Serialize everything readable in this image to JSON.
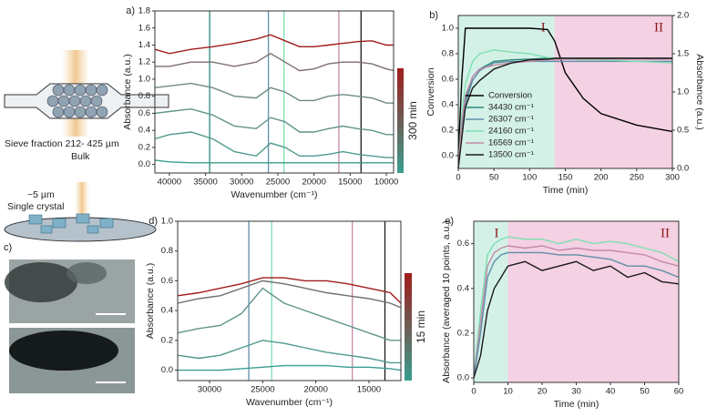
{
  "schematic": {
    "labels": [
      "Sieve fraction 212- 425 µm",
      "Bulk",
      "~5 µm",
      "Single crystal"
    ],
    "panel": "c)"
  },
  "chart_data": [
    {
      "type": "line",
      "panel": "a)",
      "xlabel": "Wavenumber (cm⁻¹)",
      "ylabel": "Absorbance (a.u.)",
      "x": [
        42000,
        40000,
        37000,
        34000,
        31000,
        28000,
        26000,
        24000,
        22000,
        20000,
        18000,
        16000,
        14000,
        12000,
        10000,
        9000
      ],
      "xlim": [
        42000,
        9000
      ],
      "xticks": [
        40000,
        35000,
        30000,
        25000,
        20000,
        15000,
        10000
      ],
      "ylim": [
        -0.1,
        1.8
      ],
      "yticks": [
        {
          "value": 0,
          "label": "0.0"
        },
        0.2,
        0.4,
        0.6,
        0.8,
        {
          "value": 1,
          "label": "1.0"
        },
        1.2,
        1.4,
        1.6,
        1.8
      ],
      "series": [
        {
          "color": "#3a9e8f",
          "values": [
            0.05,
            0.03,
            0.02,
            0.02,
            0.02,
            0.02,
            0.02,
            0.02,
            0.02,
            0.02,
            0.02,
            0.02,
            0.02,
            0.02,
            0.02,
            0.02
          ]
        },
        {
          "color": "#4f9a8e",
          "values": [
            0.3,
            0.35,
            0.38,
            0.3,
            0.15,
            0.1,
            0.25,
            0.2,
            0.1,
            0.1,
            0.12,
            0.15,
            0.12,
            0.1,
            0.08,
            0.08
          ]
        },
        {
          "color": "#5f948c",
          "values": [
            0.6,
            0.62,
            0.65,
            0.58,
            0.45,
            0.42,
            0.55,
            0.5,
            0.38,
            0.38,
            0.42,
            0.45,
            0.42,
            0.4,
            0.35,
            0.35
          ]
        },
        {
          "color": "#6f8a86",
          "values": [
            0.9,
            0.92,
            0.95,
            0.9,
            0.8,
            0.78,
            0.9,
            0.85,
            0.75,
            0.75,
            0.8,
            0.82,
            0.8,
            0.78,
            0.72,
            0.72
          ]
        },
        {
          "color": "#7d6f6f",
          "values": [
            1.15,
            1.15,
            1.2,
            1.2,
            1.15,
            1.2,
            1.3,
            1.2,
            1.1,
            1.12,
            1.18,
            1.2,
            1.2,
            1.18,
            1.12,
            1.1
          ]
        },
        {
          "color": "#a01c1c",
          "values": [
            1.35,
            1.3,
            1.35,
            1.38,
            1.42,
            1.47,
            1.52,
            1.45,
            1.38,
            1.38,
            1.4,
            1.42,
            1.44,
            1.45,
            1.4,
            1.4
          ]
        }
      ],
      "vlines": [
        {
          "value": 34430,
          "color": "#2a8a78"
        },
        {
          "value": 26307,
          "color": "#5f8fa8"
        },
        {
          "value": 24160,
          "color": "#7de0b0"
        },
        {
          "value": 16569,
          "color": "#c48aa8"
        },
        {
          "value": 13500,
          "color": "#1a1a1a"
        }
      ],
      "colorbar": {
        "label": "300 min",
        "colors": [
          "#3a9e8f",
          "#a01c1c"
        ]
      }
    },
    {
      "type": "line",
      "panel": "b)",
      "xlabel": "Time (min)",
      "ylabel": "Conversion",
      "y2label": "Absorbance (a.u.)",
      "x": [
        0,
        5,
        10,
        20,
        30,
        50,
        75,
        100,
        125,
        135,
        150,
        175,
        200,
        250,
        300
      ],
      "xlim": [
        0,
        300
      ],
      "xticks": [
        0,
        50,
        100,
        150,
        200,
        250,
        300
      ],
      "ylim": [
        -0.1,
        1.1
      ],
      "yticks": [
        {
          "value": 0,
          "label": "0.0"
        },
        0.2,
        0.4,
        0.6,
        0.8,
        {
          "value": 1,
          "label": "1.0"
        }
      ],
      "y2lim": [
        0,
        2
      ],
      "y2ticks": [
        {
          "value": 0,
          "label": "0.0"
        },
        0.5,
        {
          "value": 1,
          "label": "1.0"
        },
        1.5,
        {
          "value": 2,
          "label": "2.0"
        }
      ],
      "legend": "lower left",
      "regions": [
        {
          "start": 0,
          "end": 135,
          "color": "#cdeee4",
          "label": "I"
        },
        {
          "start": 135,
          "end": 300,
          "color": "#f2c9de",
          "label": "II"
        }
      ],
      "series": [
        {
          "name": "Conversion",
          "color": "#000000",
          "values": [
            0,
            0.6,
            1.0,
            1.0,
            1.0,
            1.0,
            1.0,
            1.0,
            0.99,
            0.9,
            0.65,
            0.45,
            0.33,
            0.24,
            0.19
          ]
        },
        {
          "name": "34430 cm⁻¹",
          "color": "#2a8a78",
          "axis": "y2",
          "values": [
            0,
            0.55,
            0.9,
            1.2,
            1.3,
            1.4,
            1.42,
            1.43,
            1.44,
            1.44,
            1.44,
            1.44,
            1.44,
            1.44,
            1.44
          ]
        },
        {
          "name": "26307 cm⁻¹",
          "color": "#5f8fa8",
          "axis": "y2",
          "values": [
            0,
            0.5,
            0.85,
            1.15,
            1.28,
            1.38,
            1.4,
            1.4,
            1.4,
            1.4,
            1.4,
            1.4,
            1.4,
            1.4,
            1.4
          ]
        },
        {
          "name": "24160 cm⁻¹",
          "color": "#7de0b0",
          "axis": "y2",
          "values": [
            0,
            0.7,
            1.1,
            1.4,
            1.5,
            1.55,
            1.52,
            1.5,
            1.45,
            1.44,
            1.43,
            1.42,
            1.42,
            1.4,
            1.38
          ]
        },
        {
          "name": "16569 cm⁻¹",
          "color": "#c48aa8",
          "axis": "y2",
          "values": [
            0,
            0.6,
            0.95,
            1.2,
            1.3,
            1.35,
            1.38,
            1.4,
            1.42,
            1.42,
            1.43,
            1.43,
            1.43,
            1.43,
            1.43
          ]
        },
        {
          "name": "13500 cm⁻¹",
          "color": "#1a1a1a",
          "axis": "y2",
          "values": [
            0,
            0.4,
            0.8,
            1.05,
            1.15,
            1.3,
            1.38,
            1.42,
            1.43,
            1.44,
            1.44,
            1.44,
            1.44,
            1.44,
            1.44
          ]
        }
      ]
    },
    {
      "type": "line",
      "panel": "d)",
      "xlabel": "Wavenumber (cm⁻¹)",
      "ylabel": "Absorbance (a.u.)",
      "x": [
        33000,
        31000,
        29000,
        27000,
        25000,
        23000,
        21000,
        19000,
        17000,
        15000,
        13000,
        12000
      ],
      "xlim": [
        33000,
        12000
      ],
      "xticks": [
        30000,
        25000,
        20000,
        15000
      ],
      "ylim": [
        -0.07,
        1.0
      ],
      "yticks": [
        {
          "value": 0,
          "label": "0.0"
        },
        0.2,
        0.4,
        0.6,
        0.8,
        {
          "value": 1,
          "label": "1.0"
        }
      ],
      "series": [
        {
          "color": "#3a9e8f",
          "values": [
            0.0,
            0.0,
            0.0,
            0.01,
            0.02,
            0.03,
            0.03,
            0.03,
            0.02,
            0.02,
            0.01,
            0.0
          ]
        },
        {
          "color": "#4f9a8e",
          "values": [
            0.1,
            0.08,
            0.1,
            0.15,
            0.2,
            0.18,
            0.15,
            0.12,
            0.1,
            0.08,
            0.05,
            0.05
          ]
        },
        {
          "color": "#5f948c",
          "values": [
            0.25,
            0.28,
            0.3,
            0.38,
            0.55,
            0.45,
            0.4,
            0.35,
            0.3,
            0.25,
            0.2,
            0.2
          ]
        },
        {
          "color": "#6f6f6f",
          "values": [
            0.45,
            0.48,
            0.5,
            0.55,
            0.6,
            0.58,
            0.55,
            0.52,
            0.5,
            0.48,
            0.45,
            0.42
          ]
        },
        {
          "color": "#a01c1c",
          "values": [
            0.5,
            0.52,
            0.55,
            0.58,
            0.62,
            0.62,
            0.6,
            0.6,
            0.58,
            0.55,
            0.52,
            0.45
          ]
        }
      ],
      "vlines": [
        {
          "value": 26307,
          "color": "#5f8fa8"
        },
        {
          "value": 24160,
          "color": "#7de0b0"
        },
        {
          "value": 16569,
          "color": "#c48aa8"
        },
        {
          "value": 13500,
          "color": "#1a1a1a"
        }
      ],
      "colorbar": {
        "label": "15 min",
        "colors": [
          "#3a9e8f",
          "#a01c1c"
        ]
      }
    },
    {
      "type": "line",
      "panel": "e)",
      "xlabel": "Time (min)",
      "ylabel": "Absorbance (averaged 10 points, a.u.)",
      "x": [
        0,
        2,
        4,
        6,
        8,
        10,
        15,
        20,
        25,
        30,
        35,
        40,
        45,
        50,
        55,
        60
      ],
      "xlim": [
        0,
        60
      ],
      "xticks": [
        0,
        10,
        20,
        30,
        40,
        50,
        60
      ],
      "ylim": [
        -0.02,
        0.7
      ],
      "yticks": [
        {
          "value": 0,
          "label": "0.0"
        },
        0.2,
        0.4,
        0.6
      ],
      "regions": [
        {
          "start": 0,
          "end": 10,
          "color": "#cdeee4",
          "label": "I"
        },
        {
          "start": 10,
          "end": 60,
          "color": "#f2c9de",
          "label": "II"
        }
      ],
      "series": [
        {
          "color": "#7de0b0",
          "values": [
            0,
            0.3,
            0.55,
            0.6,
            0.62,
            0.63,
            0.62,
            0.62,
            0.6,
            0.62,
            0.6,
            0.61,
            0.6,
            0.58,
            0.56,
            0.52
          ]
        },
        {
          "color": "#c48aa8",
          "values": [
            0,
            0.25,
            0.5,
            0.56,
            0.58,
            0.59,
            0.58,
            0.59,
            0.57,
            0.58,
            0.57,
            0.57,
            0.56,
            0.55,
            0.52,
            0.5
          ]
        },
        {
          "color": "#5f8fa8",
          "values": [
            0,
            0.2,
            0.45,
            0.52,
            0.55,
            0.56,
            0.56,
            0.56,
            0.55,
            0.55,
            0.54,
            0.53,
            0.5,
            0.5,
            0.48,
            0.45
          ]
        },
        {
          "color": "#1a1a1a",
          "values": [
            0,
            0.1,
            0.3,
            0.4,
            0.45,
            0.5,
            0.52,
            0.48,
            0.5,
            0.52,
            0.48,
            0.5,
            0.45,
            0.47,
            0.43,
            0.42
          ]
        }
      ]
    }
  ]
}
